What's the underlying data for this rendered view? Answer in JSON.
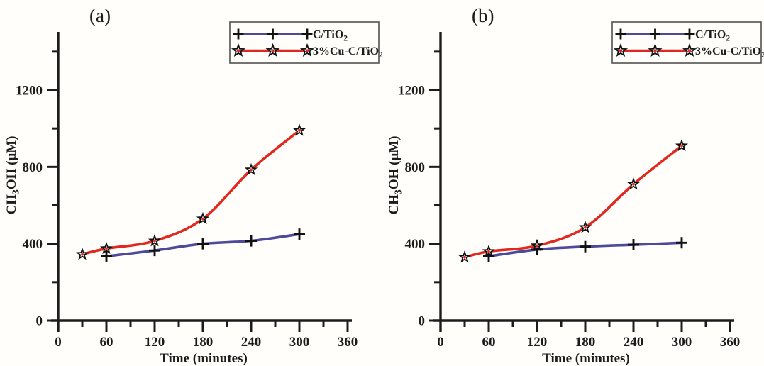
{
  "figure": {
    "background": "#fffefb",
    "axis_color": "#1c1c1c",
    "accent_red": "#e2271e",
    "accent_blue": "#4d4a9c"
  },
  "chart_data": [
    {
      "type": "line",
      "panel_label": "(a)",
      "xlabel": "Time (minutes)",
      "ylabel": "CH3OH (μM)",
      "ylabel_segments": [
        [
          "CH",
          false
        ],
        [
          "3",
          true
        ],
        [
          "OH (μM)",
          false
        ]
      ],
      "xlim": [
        0,
        366
      ],
      "ylim": [
        0,
        1500
      ],
      "x_major_ticks": [
        0,
        60,
        120,
        180,
        240,
        300,
        360
      ],
      "x_minor_ticks": [
        30,
        90,
        150,
        210,
        270,
        330
      ],
      "y_major_ticks": [
        0,
        400,
        800,
        1200
      ],
      "y_minor_ticks": [
        200,
        600,
        1000,
        1400
      ],
      "grid": false,
      "legend_position": "top-right",
      "series": [
        {
          "name": "C/TiO2",
          "label_segments": [
            [
              "C/TiO",
              false
            ],
            [
              "2",
              true
            ]
          ],
          "color": "#4d4a9c",
          "marker": "plus",
          "marker_color": "#111111",
          "x": [
            60,
            120,
            180,
            240,
            300
          ],
          "y": [
            335,
            365,
            400,
            415,
            450
          ]
        },
        {
          "name": "3%Cu-C/TiO2",
          "label_segments": [
            [
              "3%Cu-C/TiO",
              false
            ],
            [
              "2",
              true
            ]
          ],
          "color": "#e2271e",
          "marker": "star",
          "marker_color": "#111111",
          "x": [
            30,
            60,
            120,
            180,
            240,
            300
          ],
          "y": [
            345,
            375,
            415,
            530,
            785,
            990
          ]
        }
      ]
    },
    {
      "type": "line",
      "panel_label": "(b)",
      "xlabel": "Time (minutes)",
      "ylabel": "CH3OH (μM)",
      "ylabel_segments": [
        [
          "CH",
          false
        ],
        [
          "3",
          true
        ],
        [
          "OH (μM)",
          false
        ]
      ],
      "xlim": [
        0,
        366
      ],
      "ylim": [
        0,
        1500
      ],
      "x_major_ticks": [
        0,
        60,
        120,
        180,
        240,
        300,
        360
      ],
      "x_minor_ticks": [
        30,
        90,
        150,
        210,
        270,
        330
      ],
      "y_major_ticks": [
        0,
        400,
        800,
        1200
      ],
      "y_minor_ticks": [
        200,
        600,
        1000,
        1400
      ],
      "grid": false,
      "legend_position": "top-right",
      "series": [
        {
          "name": "C/TiO2",
          "label_segments": [
            [
              "C/TiO",
              false
            ],
            [
              "2",
              true
            ]
          ],
          "color": "#4d4a9c",
          "marker": "plus",
          "marker_color": "#111111",
          "x": [
            60,
            120,
            180,
            240,
            300
          ],
          "y": [
            335,
            370,
            385,
            395,
            405
          ]
        },
        {
          "name": "3%Cu-C/TiO2",
          "label_segments": [
            [
              "3%Cu-C/TiO",
              false
            ],
            [
              "2",
              true
            ]
          ],
          "color": "#e2271e",
          "marker": "star",
          "marker_color": "#111111",
          "x": [
            30,
            60,
            120,
            180,
            240,
            300
          ],
          "y": [
            330,
            360,
            390,
            485,
            710,
            910
          ]
        }
      ]
    }
  ]
}
